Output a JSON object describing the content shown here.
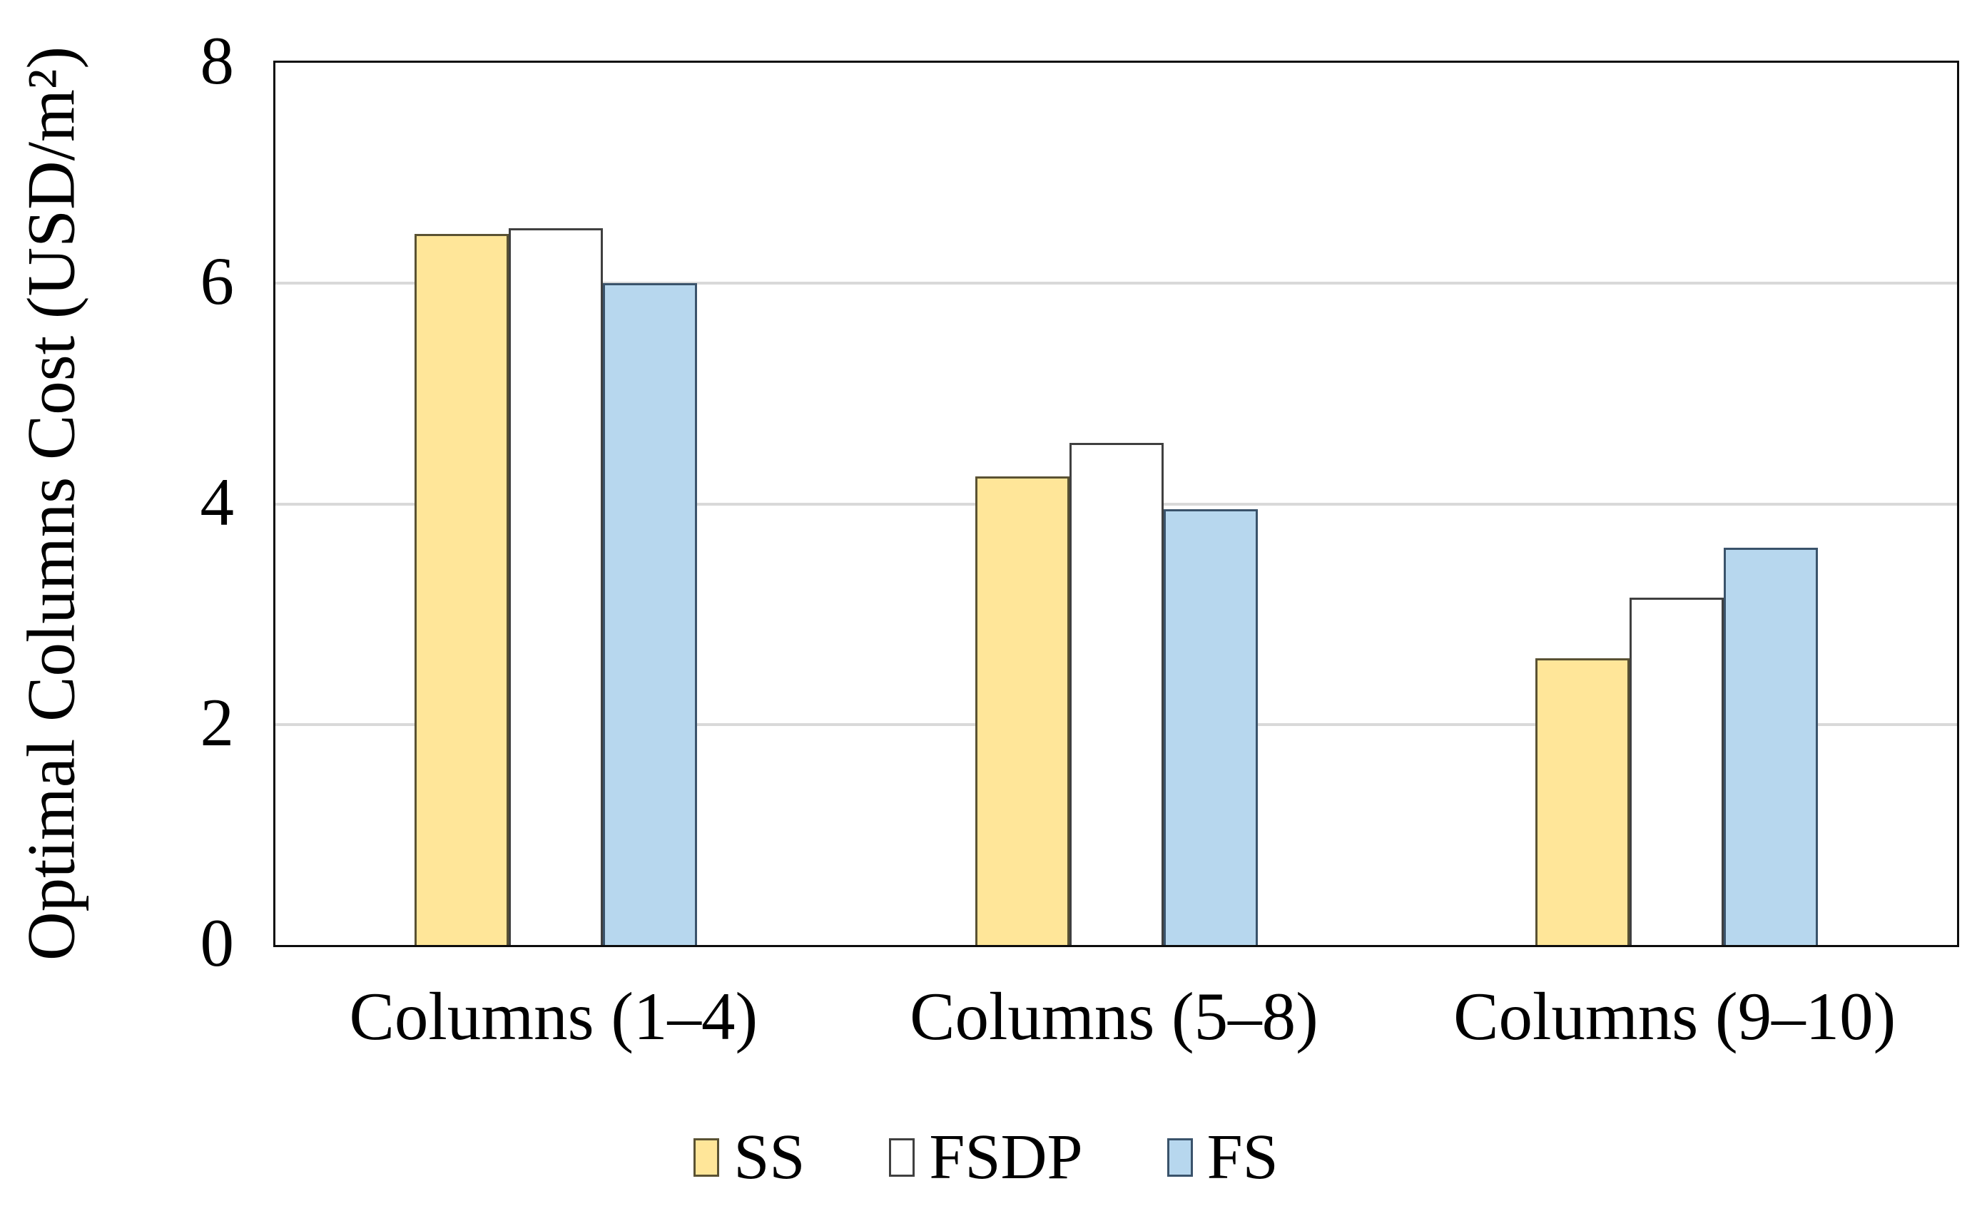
{
  "chart_data": {
    "type": "bar",
    "title": "",
    "categories": [
      "Columns (1–4)",
      "Columns (5–8)",
      "Columns (9–10)"
    ],
    "series": [
      {
        "name": "SS",
        "values": [
          6.45,
          4.25,
          2.6
        ],
        "fill": "#FFE699",
        "border": "#5a5233"
      },
      {
        "name": "FSDP",
        "values": [
          6.5,
          4.55,
          3.15
        ],
        "fill": "#FFFFFF",
        "border": "#404040"
      },
      {
        "name": "FS",
        "values": [
          6.0,
          3.95,
          3.6
        ],
        "fill": "#B7D7EE",
        "border": "#3a536b"
      }
    ],
    "ylabel": "Optimal Columns Cost (USD/m²)",
    "xlabel": "",
    "ylim": [
      0,
      8
    ],
    "yticks": [
      0,
      2,
      4,
      6,
      8
    ],
    "grid": "horizontal",
    "gridline_values": [
      2,
      4,
      6
    ],
    "legend_position": "bottom",
    "colors": {
      "gridline": "#D9D9D9",
      "plot_border": "#0d0d0d",
      "text": "#000000",
      "background": "#FFFFFF"
    }
  }
}
